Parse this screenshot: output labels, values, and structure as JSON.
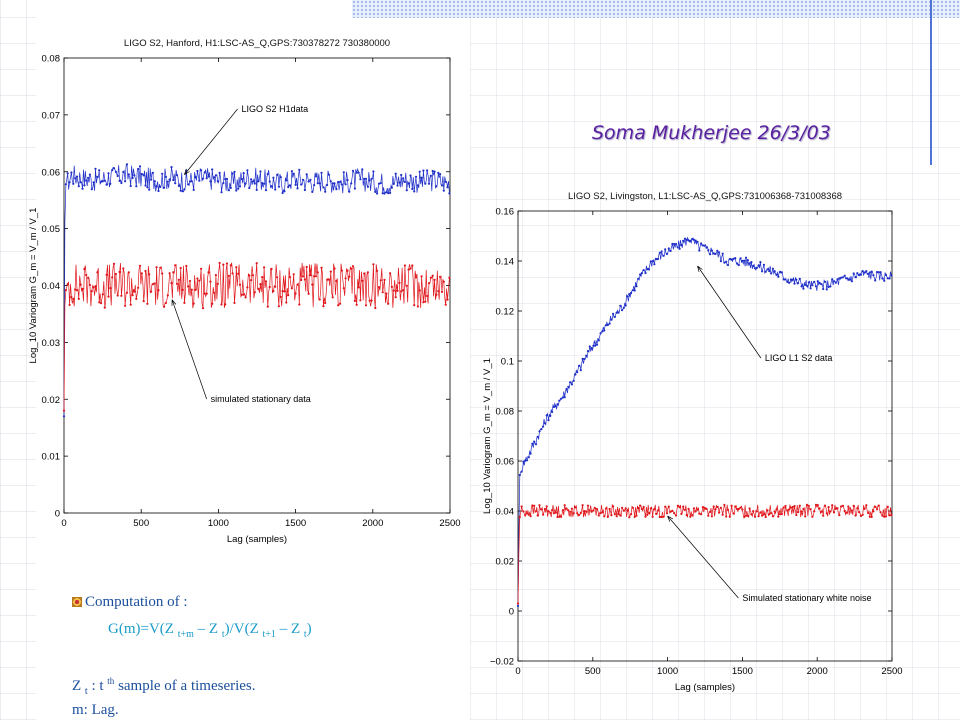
{
  "author_note": "Soma Mukherjee 26/3/03",
  "bullets": {
    "item1": "Computation of :",
    "formula": {
      "p1": "G(m)=V(Z ",
      "s1": "t+m",
      "p2": " – Z ",
      "s2": "t",
      "p3": ")/V(Z ",
      "s3": "t+1",
      "p4": " – Z ",
      "s4": "t",
      "p5": ")"
    },
    "zt": {
      "z": "Z ",
      "sub": "t",
      "colon": " : t ",
      "sup": "th",
      "rest": " sample of a timeseries."
    },
    "lag": "m: Lag."
  },
  "colors": {
    "real_series": "#1f2fc8",
    "simulated_series": "#e0161b",
    "axis": "#000000",
    "author": "#5a1f9e"
  },
  "chart_data": [
    {
      "type": "line",
      "title": "LIGO S2, Hanford, H1:LSC-AS_Q,GPS:730378272 730380000",
      "xlabel": "Lag (samples)",
      "ylabel": "Log_10 Variogram G_m = V_m / V_1",
      "xlim": [
        0,
        2500
      ],
      "ylim": [
        0,
        0.08
      ],
      "xticks": [
        "0",
        "500",
        "1000",
        "1500",
        "2000",
        "2500"
      ],
      "yticks": [
        "0",
        "0.01",
        "0.02",
        "0.03",
        "0.04",
        "0.05",
        "0.06",
        "0.07",
        "0.08"
      ],
      "grid": false,
      "series": [
        {
          "name": "LIGO S2 H1data",
          "x": [
            0,
            5,
            10,
            15,
            25,
            50,
            100,
            200,
            300,
            400,
            500,
            600,
            700,
            800,
            900,
            1000,
            1100,
            1200,
            1300,
            1400,
            1500,
            1600,
            1700,
            1800,
            1900,
            2000,
            2100,
            2200,
            2300,
            2400,
            2500
          ],
          "y": [
            0.017,
            0.05,
            0.057,
            0.059,
            0.058,
            0.0595,
            0.059,
            0.0585,
            0.059,
            0.0595,
            0.059,
            0.0585,
            0.059,
            0.0582,
            0.059,
            0.0585,
            0.058,
            0.059,
            0.0585,
            0.058,
            0.0588,
            0.0583,
            0.0585,
            0.058,
            0.0587,
            0.0582,
            0.058,
            0.0586,
            0.0582,
            0.0585,
            0.058
          ],
          "noise": 0.002
        },
        {
          "name": "simulated stationary data",
          "x": [
            0,
            5,
            10,
            20,
            50,
            100,
            500,
            1000,
            1500,
            2000,
            2500
          ],
          "y": [
            0.018,
            0.036,
            0.039,
            0.04,
            0.04,
            0.04,
            0.04,
            0.04,
            0.04,
            0.04,
            0.04
          ],
          "noise": 0.004
        }
      ],
      "annotations": [
        {
          "text": "LIGO S2 H1data",
          "x": 1150,
          "y": 0.0705,
          "point_x": 780,
          "point_y": 0.0595
        },
        {
          "text": "simulated stationary data",
          "x": 950,
          "y": 0.0195,
          "point_x": 700,
          "point_y": 0.0375
        }
      ]
    },
    {
      "type": "line",
      "title": "LIGO S2, Livingston, L1:LSC-AS_Q,GPS:731006368-731008368",
      "xlabel": "Lag (samples)",
      "ylabel": "Log_10 Variogram G_m = V_m / V_1",
      "xlim": [
        0,
        2500
      ],
      "ylim": [
        -0.02,
        0.16
      ],
      "xticks": [
        "0",
        "500",
        "1000",
        "1500",
        "2000",
        "2500"
      ],
      "yticks": [
        "−0.02",
        "0",
        "0.02",
        "0.04",
        "0.06",
        "0.08",
        "0.1",
        "0.12",
        "0.14",
        "0.16"
      ],
      "grid": false,
      "series": [
        {
          "name": "LIGO L1 S2 data",
          "x": [
            0,
            10,
            30,
            100,
            200,
            300,
            400,
            500,
            600,
            700,
            800,
            900,
            1000,
            1100,
            1150,
            1200,
            1300,
            1400,
            1500,
            1600,
            1700,
            1800,
            1900,
            2000,
            2100,
            2200,
            2300,
            2400,
            2500
          ],
          "y": [
            0.002,
            0.054,
            0.058,
            0.066,
            0.078,
            0.086,
            0.096,
            0.106,
            0.115,
            0.122,
            0.132,
            0.14,
            0.144,
            0.147,
            0.149,
            0.146,
            0.144,
            0.14,
            0.14,
            0.138,
            0.136,
            0.133,
            0.131,
            0.13,
            0.131,
            0.133,
            0.135,
            0.134,
            0.134
          ],
          "noise": 0.002
        },
        {
          "name": "Simulated stationary white noise",
          "x": [
            0,
            10,
            20,
            50,
            500,
            1000,
            1500,
            2000,
            2500
          ],
          "y": [
            0.003,
            0.037,
            0.04,
            0.04,
            0.04,
            0.04,
            0.04,
            0.04,
            0.04
          ],
          "noise": 0.0025
        }
      ],
      "annotations": [
        {
          "text": "LIGO L1 S2 data",
          "x": 1650,
          "y": 0.1,
          "point_x": 1200,
          "point_y": 0.138
        },
        {
          "text": "Simulated stationary white noise",
          "x": 1500,
          "y": 0.004,
          "point_x": 1000,
          "point_y": 0.038
        }
      ]
    }
  ]
}
